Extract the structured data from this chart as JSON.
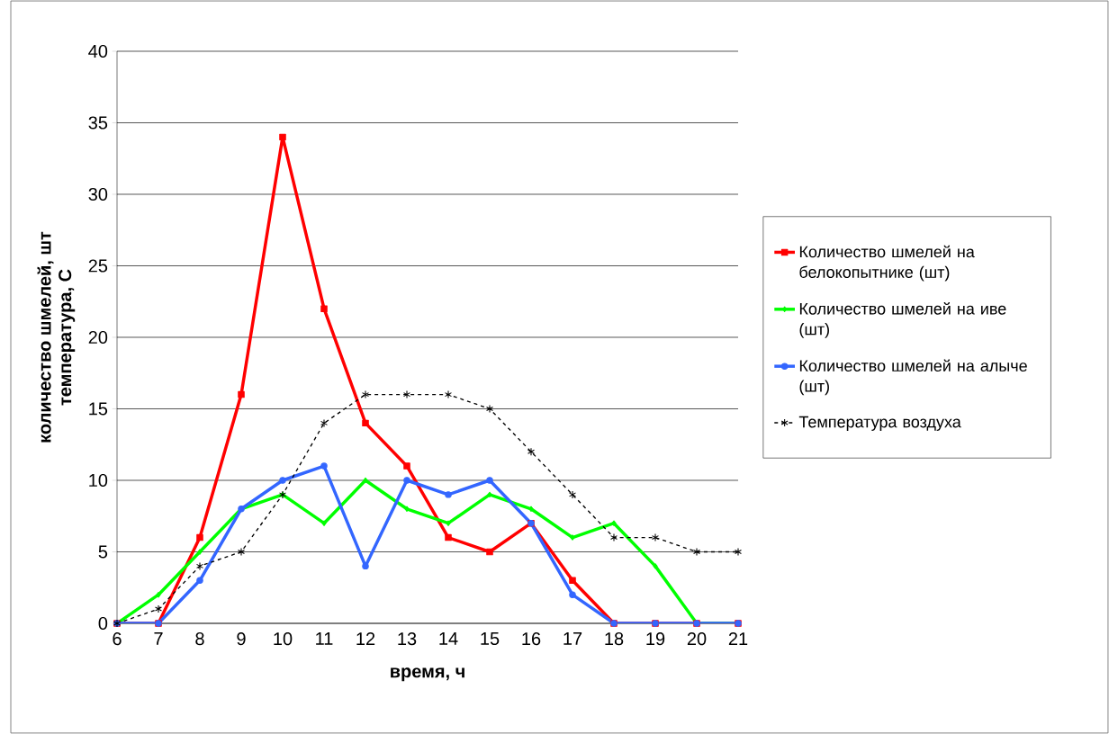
{
  "chart_data": {
    "type": "line",
    "xlabel": "время, ч",
    "ylabel": "количество шмелей, шт",
    "annotations": [
      "температура, С"
    ],
    "categories": [
      "6",
      "7",
      "8",
      "9",
      "10",
      "11",
      "12",
      "13",
      "14",
      "15",
      "16",
      "17",
      "18",
      "19",
      "20",
      "21"
    ],
    "series": [
      {
        "name": "Количество шмелей на белокопытнике (шт)",
        "color": "#ff0000",
        "marker": "square",
        "line_style": "solid",
        "values": [
          0,
          0,
          6,
          16,
          34,
          22,
          14,
          11,
          6,
          5,
          7,
          3,
          0,
          0,
          0,
          0
        ]
      },
      {
        "name": "Количество шмелей на иве (шт)",
        "color": "#00ff00",
        "marker": "diamond",
        "line_style": "solid",
        "values": [
          0,
          2,
          5,
          8,
          9,
          7,
          10,
          8,
          7,
          9,
          8,
          6,
          7,
          4,
          0,
          0
        ]
      },
      {
        "name": "Количество шмелей на алыче (шт)",
        "color": "#3366ff",
        "marker": "circle",
        "line_style": "solid",
        "values": [
          0,
          0,
          3,
          8,
          10,
          11,
          4,
          10,
          9,
          10,
          7,
          2,
          0,
          0,
          0,
          0
        ]
      },
      {
        "name": "Температура воздуха",
        "color": "#000000",
        "marker": "cross",
        "line_style": "dashed",
        "values": [
          0,
          1,
          4,
          5,
          9,
          14,
          16,
          16,
          16,
          15,
          12,
          9,
          6,
          6,
          5,
          5
        ]
      }
    ],
    "ylim": [
      0,
      40
    ],
    "yticks": [
      0,
      5,
      10,
      15,
      20,
      25,
      30,
      35,
      40
    ],
    "grid": "y",
    "legend": "right"
  }
}
